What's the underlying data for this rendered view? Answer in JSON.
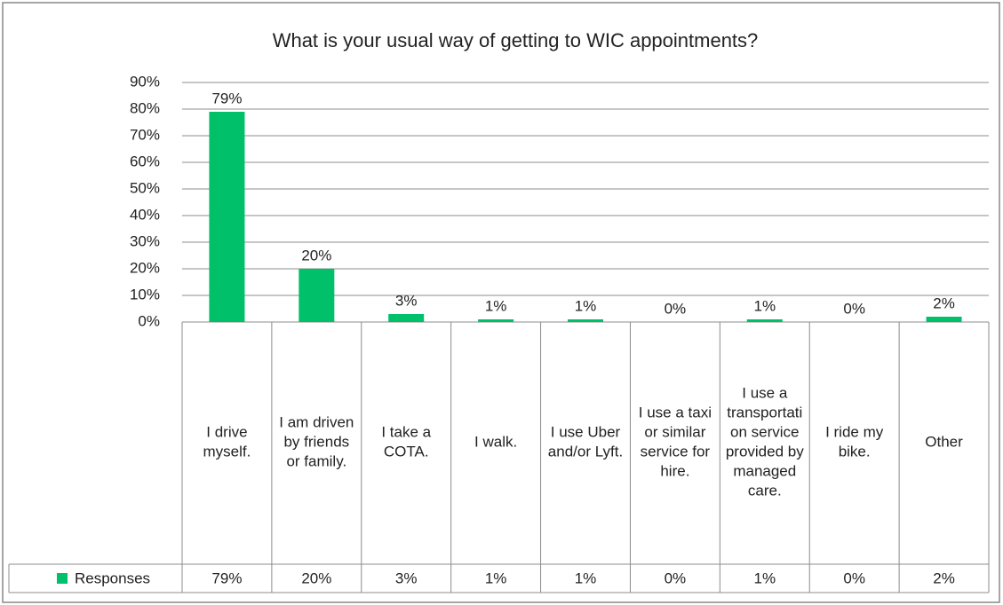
{
  "chart_data": {
    "type": "bar",
    "title": "What is your usual way of getting to WIC appointments?",
    "categories": [
      "I drive myself.",
      "I am driven by friends or family.",
      "I take a COTA.",
      "I walk.",
      "I use Uber and/or Lyft.",
      "I use a taxi or similar service for hire.",
      "I use a transportation service provided by managed care.",
      "I ride my bike.",
      "Other"
    ],
    "series": [
      {
        "name": "Responses",
        "color": "#00c06a",
        "values": [
          79,
          20,
          3,
          1,
          1,
          0,
          1,
          0,
          2
        ],
        "value_labels": [
          "79%",
          "20%",
          "3%",
          "1%",
          "1%",
          "0%",
          "1%",
          "0%",
          "2%"
        ]
      }
    ],
    "ylim": [
      0,
      90
    ],
    "yticks": [
      {
        "value": 0,
        "label": "0%"
      },
      {
        "value": 10,
        "label": "10%"
      },
      {
        "value": 20,
        "label": "20%"
      },
      {
        "value": 30,
        "label": "30%"
      },
      {
        "value": 40,
        "label": "40%"
      },
      {
        "value": 50,
        "label": "50%"
      },
      {
        "value": 60,
        "label": "60%"
      },
      {
        "value": 70,
        "label": "70%"
      },
      {
        "value": 80,
        "label": "80%"
      },
      {
        "value": 90,
        "label": "90%"
      }
    ],
    "grid": true
  }
}
